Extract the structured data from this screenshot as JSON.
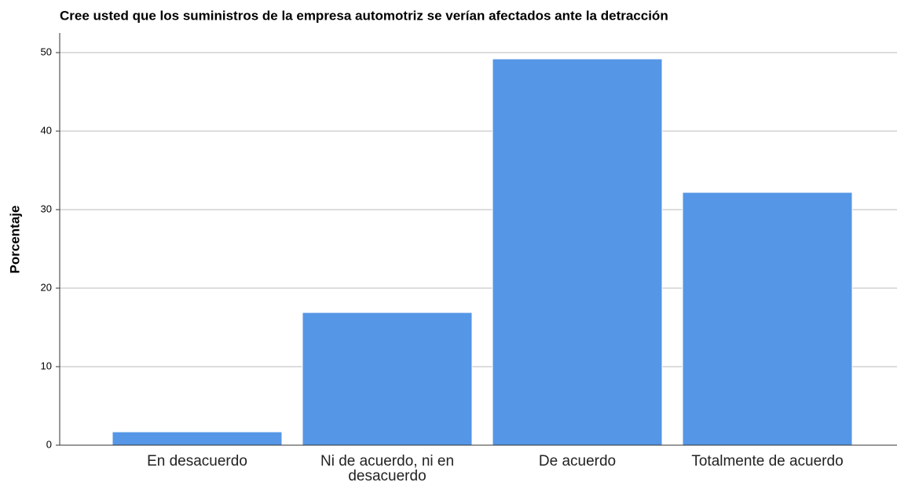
{
  "chart_data": {
    "type": "bar",
    "title": "Cree usted que los suministros de la empresa automotriz se verían afectados ante la detracción",
    "y_label": "Porcentaje",
    "categories": [
      "En desacuerdo",
      "Ni de acuerdo, ni en desacuerdo",
      "De acuerdo",
      "Totalmente de acuerdo"
    ],
    "values": [
      1.7,
      16.9,
      49.2,
      32.2
    ],
    "color": "#5596e6",
    "ylim": [
      0,
      50
    ],
    "yticks": [
      0,
      10,
      20,
      30,
      40,
      50
    ],
    "grid": true
  }
}
